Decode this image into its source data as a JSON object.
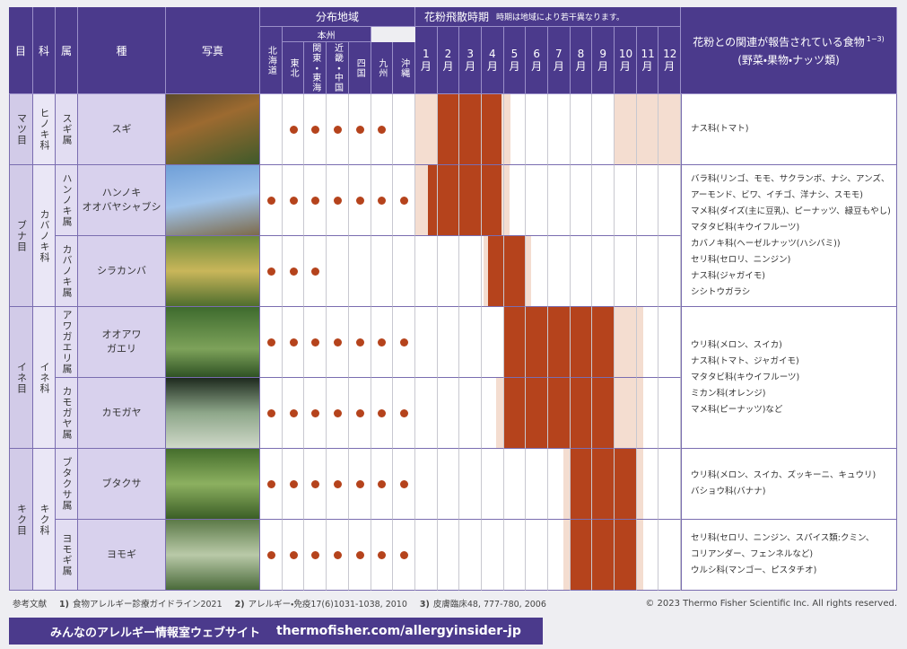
{
  "header": {
    "order": "目",
    "family": "科",
    "genus": "属",
    "species": "種",
    "photo": "写真",
    "distribution": "分布地域",
    "honshu": "本州",
    "regions": [
      "北海道",
      "東北",
      "関東・東海",
      "近畿・中国",
      "四国",
      "九州",
      "沖縄"
    ],
    "season": "花粉飛散時期",
    "season_note": "時期は地域により若干異なります。",
    "months": [
      "1月",
      "2月",
      "3月",
      "4月",
      "5月",
      "6月",
      "7月",
      "8月",
      "9月",
      "10月",
      "11月",
      "12月"
    ],
    "foods": "花粉との関連が報告されている食物",
    "foods_ref": "1−3)",
    "foods_sub": "(野菜・果物・ナッツ類)"
  },
  "orders": [
    {
      "label": "マツ目",
      "foods": [
        "ナス科(トマト)"
      ],
      "families": [
        {
          "label": "ヒノキ科",
          "genera": [
            {
              "label": "スギ属",
              "species": [
                {
                  "name": "スギ",
                  "regions": [
                    false,
                    true,
                    true,
                    true,
                    true,
                    true,
                    false
                  ],
                  "peak": [
                    [
                      2,
                      4.9
                    ]
                  ],
                  "minor": [
                    [
                      1,
                      2
                    ],
                    [
                      4.9,
                      5.3
                    ],
                    [
                      10,
                      13
                    ]
                  ]
                }
              ]
            }
          ]
        }
      ]
    },
    {
      "label": "ブナ目",
      "foods": [
        "バラ科(リンゴ、モモ、サクランボ、ナシ、アンズ、",
        "アーモンド、ビワ、イチゴ、洋ナシ、スモモ)",
        "マメ科(ダイズ(主に豆乳)、ピーナッツ、緑豆もやし)",
        "マタタビ科(キウイフルーツ)",
        "カバノキ科(ヘーゼルナッツ(ハシバミ))",
        "セリ科(セロリ、ニンジン)",
        "ナス科(ジャガイモ)",
        "シシトウガラシ"
      ],
      "families": [
        {
          "label": "カバノキ科",
          "genera": [
            {
              "label": "ハンノキ属",
              "species": [
                {
                  "name": "ハンノキ\nオオバヤシャブシ",
                  "regions": [
                    true,
                    true,
                    true,
                    true,
                    true,
                    true,
                    true
                  ],
                  "peak": [
                    [
                      1.55,
                      4.9
                    ]
                  ],
                  "minor": [
                    [
                      1,
                      1.55
                    ],
                    [
                      4.9,
                      5.25
                    ]
                  ]
                }
              ]
            },
            {
              "label": "カバノキ属",
              "species": [
                {
                  "name": "シラカンバ",
                  "regions": [
                    true,
                    true,
                    true,
                    false,
                    false,
                    false,
                    false
                  ],
                  "peak": [
                    [
                      4.3,
                      6
                    ]
                  ],
                  "minor": [
                    [
                      4.1,
                      4.3
                    ],
                    [
                      6,
                      6.25
                    ]
                  ]
                }
              ]
            }
          ]
        }
      ]
    },
    {
      "label": "イネ目",
      "foods": [
        "ウリ科(メロン、スイカ)",
        "ナス科(トマト、ジャガイモ)",
        "マタタビ科(キウイフルーツ)",
        "ミカン科(オレンジ)",
        "マメ科(ピーナッツ)など"
      ],
      "families": [
        {
          "label": "イネ科",
          "genera": [
            {
              "label": "アワガエリ属",
              "species": [
                {
                  "name": "オオアワ\nガエリ",
                  "regions": [
                    true,
                    true,
                    true,
                    true,
                    true,
                    true,
                    true
                  ],
                  "peak": [
                    [
                      5,
                      10
                    ]
                  ],
                  "minor": [
                    [
                      10,
                      11.3
                    ]
                  ]
                }
              ]
            },
            {
              "label": "カモガヤ属",
              "species": [
                {
                  "name": "カモガヤ",
                  "regions": [
                    true,
                    true,
                    true,
                    true,
                    true,
                    true,
                    true
                  ],
                  "peak": [
                    [
                      5,
                      10
                    ]
                  ],
                  "minor": [
                    [
                      4.65,
                      5
                    ],
                    [
                      10,
                      11.3
                    ]
                  ]
                }
              ]
            }
          ]
        }
      ]
    },
    {
      "label": "キク目",
      "families": [
        {
          "label": "キク科",
          "genera": [
            {
              "label": "ブタクサ属",
              "species": [
                {
                  "name": "ブタクサ",
                  "regions": [
                    true,
                    true,
                    true,
                    true,
                    true,
                    true,
                    true
                  ],
                  "peak": [
                    [
                      8,
                      11
                    ]
                  ],
                  "minor": [
                    [
                      7.7,
                      8
                    ],
                    [
                      11,
                      11.3
                    ]
                  ],
                  "foods": [
                    "ウリ科(メロン、スイカ、ズッキーニ、キュウリ)",
                    "バショウ科(バナナ)"
                  ]
                }
              ]
            },
            {
              "label": "ヨモギ属",
              "species": [
                {
                  "name": "ヨモギ",
                  "regions": [
                    true,
                    true,
                    true,
                    true,
                    true,
                    true,
                    true
                  ],
                  "peak": [
                    [
                      8,
                      11
                    ]
                  ],
                  "minor": [
                    [
                      7.7,
                      8
                    ],
                    [
                      11,
                      11.3
                    ]
                  ],
                  "foods": [
                    "セリ科(セロリ、ニンジン、スパイス類:クミン、",
                    "コリアンダー、フェンネルなど)",
                    "ウルシ科(マンゴー、ピスタチオ)"
                  ]
                }
              ]
            }
          ]
        }
      ]
    }
  ],
  "footer": {
    "refs_label": "参考文献",
    "refs": [
      {
        "num": "1)",
        "text": "食物アレルギー診療ガイドライン2021"
      },
      {
        "num": "2)",
        "text": "アレルギー・免疫17(6)1031-1038, 2010"
      },
      {
        "num": "3)",
        "text": "皮膚臨床48, 777-780, 2006"
      }
    ],
    "copyright": "© 2023 Thermo Fisher Scientific Inc. All rights reserved.",
    "banner_label": "みんなのアレルギー情報室ウェブサイト",
    "banner_url": "thermofisher.com/allergyinsider-jp"
  }
}
